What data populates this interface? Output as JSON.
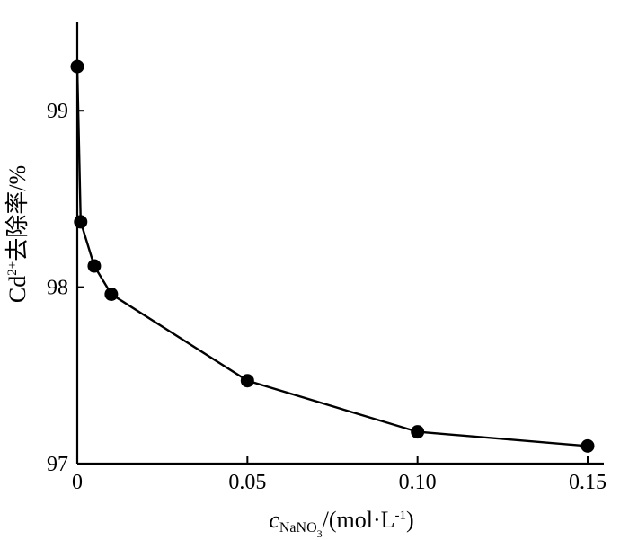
{
  "chart_data": {
    "type": "line",
    "x_axis": {
      "label_italic": "c",
      "label_subscript": "NaNO",
      "label_subscript2": "3",
      "label_rest": "/(mol·L",
      "label_sup": "-1",
      "label_close": ")",
      "range": [
        0,
        0.15
      ],
      "ticks": [
        0,
        0.05,
        0.1,
        0.15
      ],
      "tick_labels": [
        "0",
        "0.05",
        "0.10",
        "0.15"
      ]
    },
    "y_axis": {
      "label_main": "Cd",
      "label_sup": "2+",
      "label_rest": "去除率/%",
      "range": [
        97,
        99.5
      ],
      "ticks": [
        97,
        98,
        99
      ],
      "tick_labels": [
        "97",
        "98",
        "99"
      ]
    },
    "grid": false,
    "legend": "none",
    "series": [
      {
        "x": [
          0,
          0.001,
          0.005,
          0.01,
          0.05,
          0.1,
          0.15
        ],
        "y": [
          99.25,
          98.37,
          98.12,
          97.96,
          97.47,
          97.18,
          97.1
        ]
      }
    ]
  }
}
